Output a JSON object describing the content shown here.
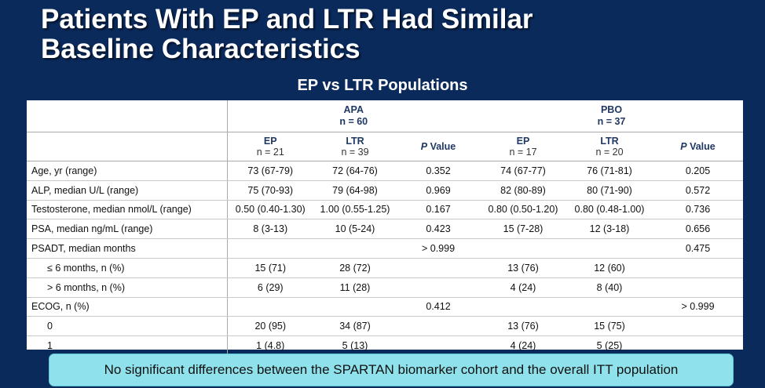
{
  "slide": {
    "title_line1": "Patients With EP and LTR Had Similar",
    "title_line2": "Baseline Characteristics",
    "subtitle": "EP vs LTR Populations"
  },
  "table": {
    "groups": [
      {
        "name": "APA",
        "n": "n = 60"
      },
      {
        "name": "PBO",
        "n": "n = 37"
      }
    ],
    "subheaders": [
      {
        "name": "EP",
        "n": "n = 21"
      },
      {
        "name": "LTR",
        "n": "n = 39"
      },
      {
        "name": "P",
        "suffix": " Value"
      },
      {
        "name": "EP",
        "n": "n = 17"
      },
      {
        "name": "LTR",
        "n": "n = 20"
      },
      {
        "name": "P",
        "suffix": " Value"
      }
    ],
    "rows": [
      {
        "label": "Age, yr (range)",
        "cells": [
          "73 (67-79)",
          "72 (64-76)",
          "0.352",
          "74 (67-77)",
          "76 (71-81)",
          "0.205"
        ]
      },
      {
        "label": "ALP, median U/L (range)",
        "cells": [
          "75 (70-93)",
          "79 (64-98)",
          "0.969",
          "82 (80-89)",
          "80 (71-90)",
          "0.572"
        ]
      },
      {
        "label": "Testosterone, median nmol/L (range)",
        "cells": [
          "0.50 (0.40-1.30)",
          "1.00 (0.55-1.25)",
          "0.167",
          "0.80 (0.50-1.20)",
          "0.80 (0.48-1.00)",
          "0.736"
        ]
      },
      {
        "label": "PSA, median ng/mL (range)",
        "cells": [
          "8 (3-13)",
          "10 (5-24)",
          "0.423",
          "15 (7-28)",
          "12 (3-18)",
          "0.656"
        ]
      },
      {
        "label": "PSADT, median months",
        "cells": [
          "",
          "",
          "> 0.999",
          "",
          "",
          "0.475"
        ]
      },
      {
        "label": "≤ 6 months, n (%)",
        "indent": true,
        "cells": [
          "15 (71)",
          "28 (72)",
          "",
          "13 (76)",
          "12 (60)",
          ""
        ]
      },
      {
        "label": "> 6 months, n (%)",
        "indent": true,
        "cells": [
          "6 (29)",
          "11 (28)",
          "",
          "4 (24)",
          "8 (40)",
          ""
        ]
      },
      {
        "label": "ECOG, n (%)",
        "cells": [
          "",
          "",
          "0.412",
          "",
          "",
          "> 0.999"
        ]
      },
      {
        "label": "0",
        "indent": true,
        "cells": [
          "20 (95)",
          "34 (87)",
          "",
          "13 (76)",
          "15 (75)",
          ""
        ]
      },
      {
        "label": "1",
        "indent": true,
        "cells": [
          "1 (4.8)",
          "5 (13)",
          "",
          "4 (24)",
          "5 (25)",
          ""
        ]
      }
    ]
  },
  "banner": "No significant differences between the SPARTAN biomarker cohort and the overall ITT population"
}
